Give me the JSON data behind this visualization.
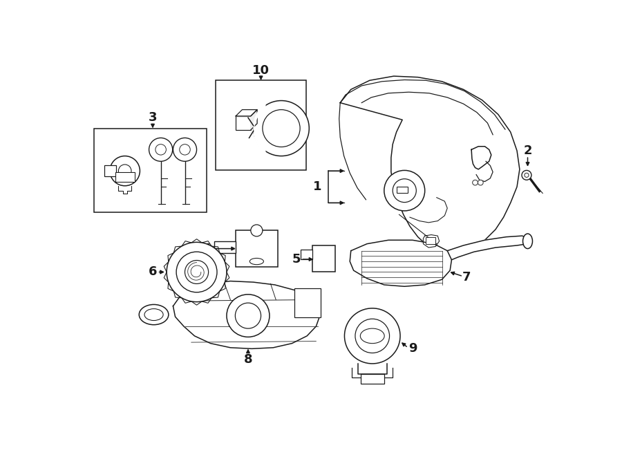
{
  "bg": "#ffffff",
  "lc": "#1a1a1a",
  "lw": 1.1,
  "fig_w": 9.0,
  "fig_h": 6.61,
  "dpi": 100,
  "label_fs": 13,
  "label_bold": true
}
